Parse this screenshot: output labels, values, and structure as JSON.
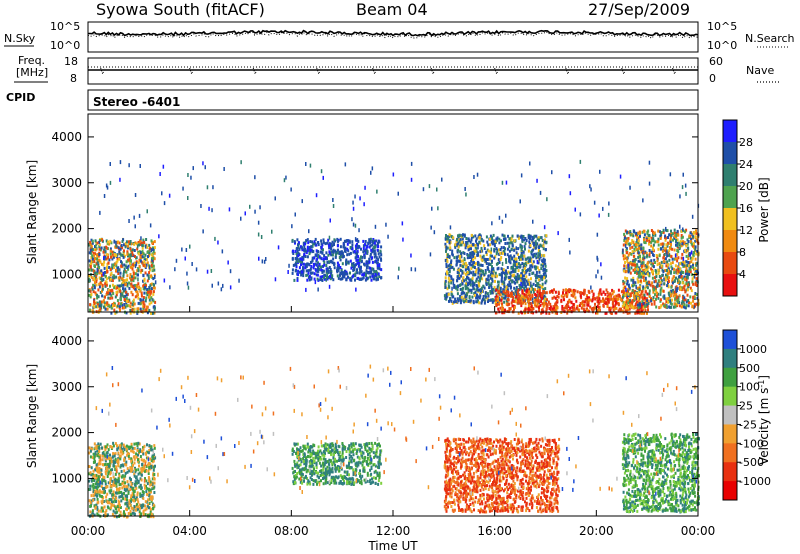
{
  "header": {
    "title": "Syowa South (fitACF)",
    "beam": "Beam 04",
    "date": "27/Sep/2009"
  },
  "top_panels": {
    "nsky_label": "N.Sky",
    "nsearch_label": "N.Search",
    "noise_ticks_left": [
      "10^5",
      "10^0"
    ],
    "noise_ticks_right": [
      "10^5",
      "10^0"
    ],
    "freq_label_line1": "Freq.",
    "freq_label_line2": "[MHz]",
    "freq_ticks": [
      "18",
      "8"
    ],
    "nave_label": "Nave",
    "nave_ticks": [
      "60",
      "0"
    ],
    "cpid_label": "CPID",
    "cpid_value": "Stereo -6401"
  },
  "colors": {
    "power_scale": [
      "#1e1eff",
      "#1f4fa8",
      "#2f7f6f",
      "#4fa34f",
      "#f0c020",
      "#f08a10",
      "#e84a10",
      "#e81010"
    ],
    "velocity_scale": [
      "#1e50d8",
      "#2f7f7f",
      "#3fa040",
      "#7fd040",
      "#c0c0c0",
      "#f0a030",
      "#f07020",
      "#e83010",
      "#e80000"
    ]
  },
  "chart_data": [
    {
      "type": "heatmap",
      "name": "power",
      "ylabel": "Slant Range [km]",
      "y_ticks": [
        "4000",
        "3000",
        "2000",
        "1000"
      ],
      "ylim": [
        180,
        4500
      ],
      "colorbar_label": "Power [dB]",
      "colorbar_ticks": [
        "28",
        "24",
        "20",
        "16",
        "12",
        "8",
        "4"
      ],
      "clim": [
        0,
        32
      ],
      "regions": [
        {
          "t0": 0.0,
          "t1": 2.6,
          "r0": 180,
          "r1": 1800,
          "level": "mixed"
        },
        {
          "t0": 8.0,
          "t1": 11.5,
          "r0": 900,
          "r1": 1800,
          "level": "low"
        },
        {
          "t0": 14.0,
          "t1": 18.0,
          "r0": 400,
          "r1": 1900,
          "level": "low-mid"
        },
        {
          "t0": 16.0,
          "t1": 22.0,
          "r0": 180,
          "r1": 700,
          "level": "high"
        },
        {
          "t0": 21.0,
          "t1": 24.0,
          "r0": 300,
          "r1": 2000,
          "level": "mixed"
        }
      ]
    },
    {
      "type": "heatmap",
      "name": "velocity",
      "ylabel": "Slant Range [km]",
      "y_ticks": [
        "4000",
        "3000",
        "2000",
        "1000"
      ],
      "ylim": [
        180,
        4500
      ],
      "xlabel": "Time UT",
      "x_ticks": [
        "00:00",
        "04:00",
        "08:00",
        "12:00",
        "16:00",
        "20:00",
        "00:00"
      ],
      "xlim": [
        0,
        24
      ],
      "colorbar_label": "Velocity [m s^-1]",
      "colorbar_ticks": [
        "1000",
        "500",
        "100",
        "25",
        "-25",
        "-100",
        "-500",
        "-1000"
      ],
      "clim": [
        -1000,
        1000
      ],
      "regions": [
        {
          "t0": 0.0,
          "t1": 2.6,
          "r0": 180,
          "r1": 1800,
          "level": "negative-mixed"
        },
        {
          "t0": 8.0,
          "t1": 11.5,
          "r0": 900,
          "r1": 1800,
          "level": "positive"
        },
        {
          "t0": 14.0,
          "t1": 18.5,
          "r0": 300,
          "r1": 1900,
          "level": "negative"
        },
        {
          "t0": 21.0,
          "t1": 24.0,
          "r0": 300,
          "r1": 2000,
          "level": "positive-mixed"
        }
      ]
    }
  ]
}
